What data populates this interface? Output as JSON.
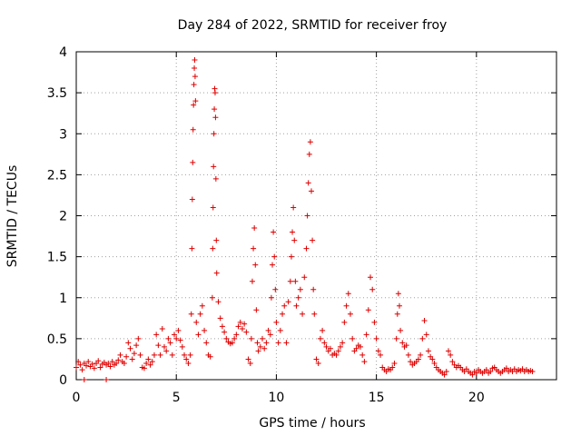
{
  "chart_data": {
    "type": "scatter",
    "title": "Day 284 of 2022, SRMTID for receiver froy",
    "xlabel": "GPS time / hours",
    "ylabel": "SRMTID / TECUs",
    "xlim": [
      0,
      24
    ],
    "ylim": [
      0,
      4
    ],
    "xticks": [
      0,
      5,
      10,
      15,
      20
    ],
    "yticks": [
      0,
      0.5,
      1,
      1.5,
      2,
      2.5,
      3,
      3.5,
      4
    ],
    "xtick_labels": [
      "0",
      "5",
      "10",
      "15",
      "20"
    ],
    "ytick_labels": [
      "0",
      "0.5",
      "1",
      "1.5",
      "2",
      "2.5",
      "3",
      "3.5",
      "4"
    ],
    "grid": true,
    "marker": "+",
    "color": "#dd0000",
    "series": [
      {
        "name": "SRMTID",
        "points": [
          [
            0.0,
            0.15
          ],
          [
            0.1,
            0.22
          ],
          [
            0.2,
            0.18
          ],
          [
            0.3,
            0.12
          ],
          [
            0.4,
            0.2
          ],
          [
            0.5,
            0.17
          ],
          [
            0.6,
            0.22
          ],
          [
            0.7,
            0.16
          ],
          [
            0.8,
            0.19
          ],
          [
            0.9,
            0.14
          ],
          [
            1.0,
            0.2
          ],
          [
            1.1,
            0.23
          ],
          [
            1.2,
            0.15
          ],
          [
            1.3,
            0.19
          ],
          [
            1.4,
            0.21
          ],
          [
            1.5,
            0.18
          ],
          [
            1.6,
            0.2
          ],
          [
            1.7,
            0.16
          ],
          [
            1.8,
            0.22
          ],
          [
            1.9,
            0.18
          ],
          [
            2.0,
            0.2
          ],
          [
            2.1,
            0.24
          ],
          [
            2.2,
            0.3
          ],
          [
            2.3,
            0.22
          ],
          [
            2.4,
            0.2
          ],
          [
            2.5,
            0.28
          ],
          [
            2.6,
            0.45
          ],
          [
            2.7,
            0.38
          ],
          [
            2.8,
            0.25
          ],
          [
            2.9,
            0.32
          ],
          [
            3.0,
            0.42
          ],
          [
            3.1,
            0.5
          ],
          [
            3.2,
            0.3
          ],
          [
            3.3,
            0.15
          ],
          [
            3.4,
            0.14
          ],
          [
            3.5,
            0.2
          ],
          [
            3.6,
            0.25
          ],
          [
            3.7,
            0.18
          ],
          [
            3.8,
            0.22
          ],
          [
            3.9,
            0.3
          ],
          [
            4.0,
            0.55
          ],
          [
            4.1,
            0.42
          ],
          [
            4.2,
            0.3
          ],
          [
            4.3,
            0.62
          ],
          [
            4.4,
            0.4
          ],
          [
            4.5,
            0.35
          ],
          [
            4.6,
            0.5
          ],
          [
            4.7,
            0.45
          ],
          [
            4.8,
            0.3
          ],
          [
            4.9,
            0.55
          ],
          [
            5.0,
            0.5
          ],
          [
            5.1,
            0.6
          ],
          [
            5.2,
            0.48
          ],
          [
            5.3,
            0.4
          ],
          [
            5.4,
            0.3
          ],
          [
            5.5,
            0.25
          ],
          [
            5.6,
            0.2
          ],
          [
            5.7,
            0.3
          ],
          [
            5.75,
            0.8
          ],
          [
            5.78,
            1.6
          ],
          [
            5.8,
            2.2
          ],
          [
            5.82,
            2.65
          ],
          [
            5.84,
            3.05
          ],
          [
            5.86,
            3.35
          ],
          [
            5.88,
            3.6
          ],
          [
            5.9,
            3.8
          ],
          [
            5.92,
            3.9
          ],
          [
            5.94,
            3.7
          ],
          [
            5.96,
            3.4
          ],
          [
            6.0,
            0.7
          ],
          [
            6.1,
            0.55
          ],
          [
            6.2,
            0.8
          ],
          [
            6.3,
            0.9
          ],
          [
            6.4,
            0.6
          ],
          [
            6.5,
            0.45
          ],
          [
            6.6,
            0.3
          ],
          [
            6.7,
            0.28
          ],
          [
            6.8,
            1.0
          ],
          [
            6.82,
            1.6
          ],
          [
            6.84,
            2.1
          ],
          [
            6.86,
            2.6
          ],
          [
            6.88,
            3.0
          ],
          [
            6.9,
            3.3
          ],
          [
            6.92,
            3.55
          ],
          [
            6.94,
            3.5
          ],
          [
            6.96,
            3.2
          ],
          [
            6.98,
            2.45
          ],
          [
            7.0,
            1.7
          ],
          [
            7.02,
            1.3
          ],
          [
            7.1,
            0.95
          ],
          [
            7.2,
            0.75
          ],
          [
            7.3,
            0.65
          ],
          [
            7.4,
            0.58
          ],
          [
            7.5,
            0.5
          ],
          [
            7.6,
            0.46
          ],
          [
            7.7,
            0.44
          ],
          [
            7.8,
            0.45
          ],
          [
            7.9,
            0.5
          ],
          [
            8.0,
            0.55
          ],
          [
            8.1,
            0.65
          ],
          [
            8.2,
            0.7
          ],
          [
            8.3,
            0.62
          ],
          [
            8.4,
            0.68
          ],
          [
            8.5,
            0.58
          ],
          [
            8.6,
            0.25
          ],
          [
            8.7,
            0.2
          ],
          [
            8.75,
            0.5
          ],
          [
            8.8,
            1.2
          ],
          [
            8.85,
            1.6
          ],
          [
            8.9,
            1.85
          ],
          [
            8.95,
            1.4
          ],
          [
            9.0,
            0.85
          ],
          [
            9.05,
            0.45
          ],
          [
            9.1,
            0.35
          ],
          [
            9.2,
            0.4
          ],
          [
            9.3,
            0.5
          ],
          [
            9.4,
            0.38
          ],
          [
            9.5,
            0.45
          ],
          [
            9.6,
            0.6
          ],
          [
            9.7,
            0.55
          ],
          [
            9.75,
            1.0
          ],
          [
            9.8,
            1.4
          ],
          [
            9.85,
            1.8
          ],
          [
            9.9,
            1.5
          ],
          [
            9.95,
            1.1
          ],
          [
            10.0,
            0.7
          ],
          [
            10.1,
            0.45
          ],
          [
            10.2,
            0.6
          ],
          [
            10.3,
            0.8
          ],
          [
            10.4,
            0.9
          ],
          [
            10.5,
            0.45
          ],
          [
            10.6,
            0.95
          ],
          [
            10.7,
            1.2
          ],
          [
            10.75,
            1.5
          ],
          [
            10.8,
            1.8
          ],
          [
            10.85,
            2.1
          ],
          [
            10.9,
            1.7
          ],
          [
            10.95,
            1.2
          ],
          [
            11.0,
            0.9
          ],
          [
            11.1,
            1.0
          ],
          [
            11.2,
            1.1
          ],
          [
            11.3,
            0.8
          ],
          [
            11.4,
            1.25
          ],
          [
            11.5,
            1.6
          ],
          [
            11.55,
            2.0
          ],
          [
            11.6,
            2.4
          ],
          [
            11.65,
            2.75
          ],
          [
            11.7,
            2.9
          ],
          [
            11.75,
            2.3
          ],
          [
            11.8,
            1.7
          ],
          [
            11.85,
            1.1
          ],
          [
            11.9,
            0.8
          ],
          [
            12.0,
            0.25
          ],
          [
            12.1,
            0.2
          ],
          [
            12.2,
            0.5
          ],
          [
            12.3,
            0.6
          ],
          [
            12.4,
            0.45
          ],
          [
            12.5,
            0.4
          ],
          [
            12.6,
            0.35
          ],
          [
            12.7,
            0.38
          ],
          [
            12.8,
            0.3
          ],
          [
            12.9,
            0.32
          ],
          [
            13.0,
            0.3
          ],
          [
            13.1,
            0.35
          ],
          [
            13.2,
            0.4
          ],
          [
            13.3,
            0.45
          ],
          [
            13.4,
            0.7
          ],
          [
            13.5,
            0.9
          ],
          [
            13.6,
            1.05
          ],
          [
            13.7,
            0.8
          ],
          [
            13.8,
            0.5
          ],
          [
            13.9,
            0.35
          ],
          [
            14.0,
            0.38
          ],
          [
            14.1,
            0.42
          ],
          [
            14.2,
            0.4
          ],
          [
            14.3,
            0.3
          ],
          [
            14.4,
            0.22
          ],
          [
            14.5,
            0.55
          ],
          [
            14.6,
            0.85
          ],
          [
            14.7,
            1.25
          ],
          [
            14.8,
            1.1
          ],
          [
            14.9,
            0.7
          ],
          [
            15.0,
            0.5
          ],
          [
            15.1,
            0.35
          ],
          [
            15.2,
            0.3
          ],
          [
            15.3,
            0.15
          ],
          [
            15.4,
            0.12
          ],
          [
            15.5,
            0.1
          ],
          [
            15.6,
            0.13
          ],
          [
            15.7,
            0.12
          ],
          [
            15.8,
            0.15
          ],
          [
            15.9,
            0.2
          ],
          [
            16.0,
            0.5
          ],
          [
            16.05,
            0.8
          ],
          [
            16.1,
            1.05
          ],
          [
            16.15,
            0.9
          ],
          [
            16.2,
            0.6
          ],
          [
            16.3,
            0.45
          ],
          [
            16.4,
            0.4
          ],
          [
            16.5,
            0.42
          ],
          [
            16.6,
            0.3
          ],
          [
            16.7,
            0.22
          ],
          [
            16.8,
            0.18
          ],
          [
            16.9,
            0.2
          ],
          [
            17.0,
            0.22
          ],
          [
            17.1,
            0.25
          ],
          [
            17.2,
            0.3
          ],
          [
            17.3,
            0.5
          ],
          [
            17.4,
            0.72
          ],
          [
            17.5,
            0.55
          ],
          [
            17.6,
            0.35
          ],
          [
            17.7,
            0.28
          ],
          [
            17.8,
            0.25
          ],
          [
            17.9,
            0.2
          ],
          [
            18.0,
            0.15
          ],
          [
            18.1,
            0.12
          ],
          [
            18.2,
            0.1
          ],
          [
            18.3,
            0.08
          ],
          [
            18.4,
            0.06
          ],
          [
            18.5,
            0.1
          ],
          [
            18.6,
            0.35
          ],
          [
            18.7,
            0.3
          ],
          [
            18.8,
            0.22
          ],
          [
            18.9,
            0.18
          ],
          [
            19.0,
            0.15
          ],
          [
            19.1,
            0.17
          ],
          [
            19.2,
            0.15
          ],
          [
            19.3,
            0.12
          ],
          [
            19.4,
            0.1
          ],
          [
            19.5,
            0.13
          ],
          [
            19.6,
            0.1
          ],
          [
            19.7,
            0.08
          ],
          [
            19.8,
            0.06
          ],
          [
            19.9,
            0.1
          ],
          [
            20.0,
            0.08
          ],
          [
            20.1,
            0.12
          ],
          [
            20.2,
            0.1
          ],
          [
            20.3,
            0.08
          ],
          [
            20.4,
            0.1
          ],
          [
            20.5,
            0.12
          ],
          [
            20.6,
            0.08
          ],
          [
            20.7,
            0.1
          ],
          [
            20.8,
            0.14
          ],
          [
            20.9,
            0.15
          ],
          [
            21.0,
            0.12
          ],
          [
            21.1,
            0.1
          ],
          [
            21.2,
            0.08
          ],
          [
            21.3,
            0.1
          ],
          [
            21.4,
            0.12
          ],
          [
            21.5,
            0.14
          ],
          [
            21.6,
            0.1
          ],
          [
            21.7,
            0.12
          ],
          [
            21.8,
            0.1
          ],
          [
            21.9,
            0.13
          ],
          [
            22.0,
            0.1
          ],
          [
            22.1,
            0.12
          ],
          [
            22.2,
            0.11
          ],
          [
            22.3,
            0.13
          ],
          [
            22.4,
            0.1
          ],
          [
            22.5,
            0.12
          ],
          [
            22.6,
            0.1
          ],
          [
            22.7,
            0.11
          ],
          [
            22.8,
            0.1
          ],
          [
            0.4,
            0.0
          ],
          [
            1.5,
            0.0
          ]
        ]
      }
    ]
  }
}
